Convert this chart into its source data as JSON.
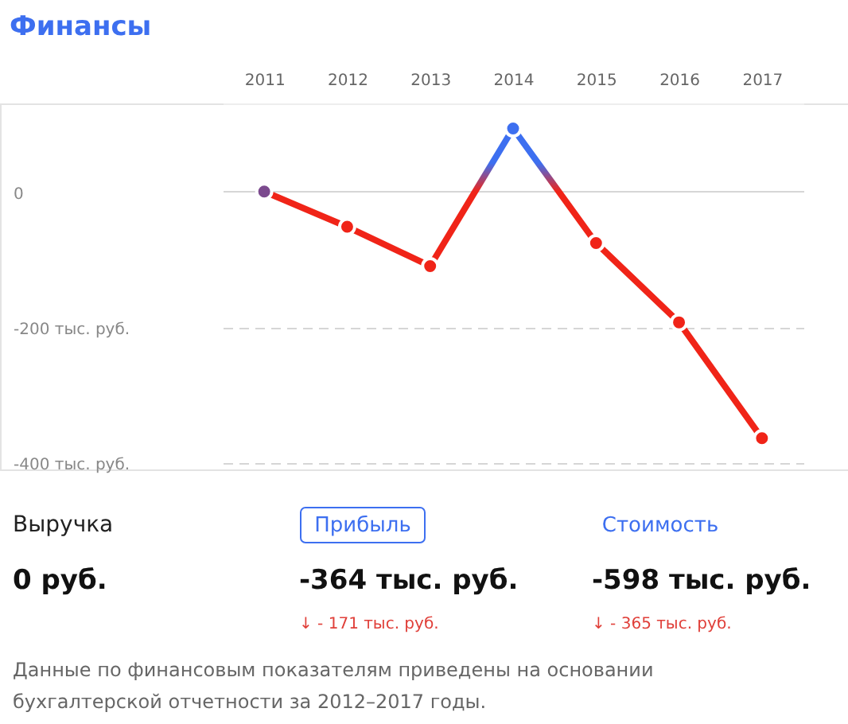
{
  "chart_data": {
    "type": "line",
    "title": "Финансы",
    "categories": [
      "2011",
      "2012",
      "2013",
      "2014",
      "2015",
      "2016",
      "2017"
    ],
    "series": [
      {
        "color": "#f02418",
        "colors": [
          "#7b4a8e",
          "#f02418",
          "#f02418",
          "#3d6ff0",
          "#f02418",
          "#f02418",
          "#f02418"
        ],
        "values": [
          0,
          -52,
          -110,
          93,
          -76,
          -193,
          -364
        ]
      }
    ],
    "ylim": [
      -410,
      130
    ],
    "yticks": [
      0,
      {
        "value": -200,
        "label": "-200 тыс. руб."
      },
      {
        "value": -400,
        "label": "-400 тыс. руб."
      }
    ],
    "grid": "y",
    "marker": "circle",
    "line_style": "solid",
    "annotations": [
      "Выручка",
      "0 руб.",
      "Прибыль",
      "-364 тыс. руб.",
      "↓ - 171 тыс. руб.",
      "Стоимость",
      "-598 тыс. руб.",
      "↓ - 365 тыс. руб.",
      "Данные по финансовым показателям приведены на основании бухгалтерской отчетности за 2012–2017 годы."
    ]
  }
}
